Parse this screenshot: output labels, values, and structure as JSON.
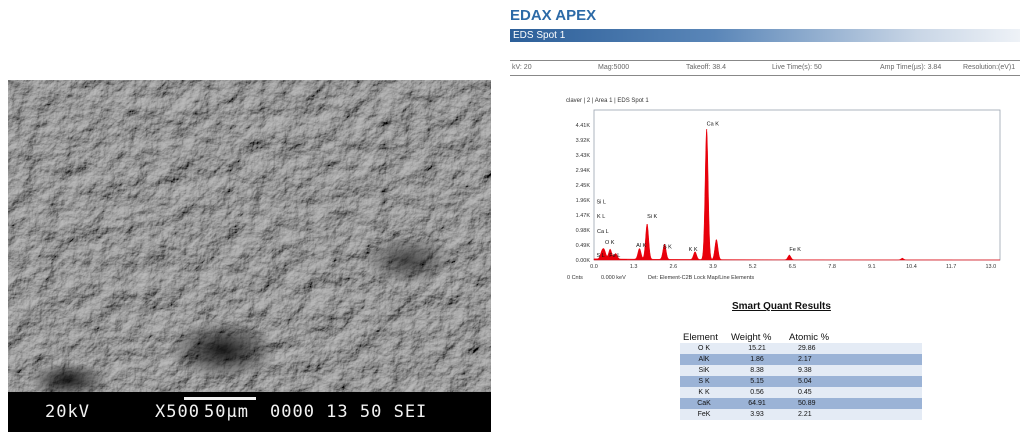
{
  "sem": {
    "kv": "20kV",
    "mag": "X500",
    "scale": "50µm",
    "info": "0000 13 50 SEI"
  },
  "report": {
    "title": "EDAX APEX",
    "spot": "EDS Spot 1",
    "params": {
      "kv": "kV: 20",
      "mag": "Mag:5000",
      "takeoff": "Takeoff: 38.4",
      "live": "Live Time(s): 50",
      "amp": "Amp Time(µs): 3.84",
      "resolution": "Resolution:(eV)1"
    },
    "spectrum_label": "claver | 2 | Area 1 | EDS Spot 1",
    "footer": {
      "cnts": "0 Cnts",
      "kev": "0.000 keV",
      "det": "Det: Element-C2B Lock Map/Line Elements"
    }
  },
  "chart_data": {
    "type": "line",
    "title": "",
    "xlabel": "",
    "ylabel": "",
    "xlim": [
      0,
      13.3
    ],
    "ylim": [
      0,
      4.9
    ],
    "x_ticks": [
      "0.0",
      "1.3",
      "2.6",
      "3.9",
      "5.2",
      "6.5",
      "7.8",
      "9.1",
      "10.4",
      "11.7",
      "13.0"
    ],
    "y_ticks": [
      "0.00K",
      "0.49K",
      "0.98K",
      "1.47K",
      "1.96K",
      "2.45K",
      "2.94K",
      "3.43K",
      "3.92K",
      "4.41K"
    ],
    "peaks": [
      {
        "x": 0.26,
        "y": 0.22
      },
      {
        "x": 0.34,
        "y": 0.25
      },
      {
        "x": 0.53,
        "y": 0.32
      },
      {
        "x": 0.71,
        "y": 0.18
      },
      {
        "x": 1.49,
        "y": 0.35
      },
      {
        "x": 1.74,
        "y": 1.15
      },
      {
        "x": 2.31,
        "y": 0.5
      },
      {
        "x": 3.31,
        "y": 0.25
      },
      {
        "x": 3.69,
        "y": 4.25
      },
      {
        "x": 4.01,
        "y": 0.65
      },
      {
        "x": 6.4,
        "y": 0.15
      },
      {
        "x": 10.1,
        "y": 0.05
      }
    ],
    "labels": [
      {
        "text": "Ca K",
        "x": 3.69,
        "y": 4.4
      },
      {
        "text": "Si L",
        "x": 0.08,
        "y": 1.85
      },
      {
        "text": "K L",
        "x": 0.1,
        "y": 1.37
      },
      {
        "text": "Si K",
        "x": 1.74,
        "y": 1.37
      },
      {
        "text": "Ca L",
        "x": 0.1,
        "y": 0.88
      },
      {
        "text": "O K",
        "x": 0.36,
        "y": 0.52
      },
      {
        "text": "Al K",
        "x": 1.38,
        "y": 0.42
      },
      {
        "text": "S K",
        "x": 2.26,
        "y": 0.38
      },
      {
        "text": "K K",
        "x": 3.1,
        "y": 0.3
      },
      {
        "text": "Fe K",
        "x": 6.4,
        "y": 0.3
      },
      {
        "text": "S L",
        "x": 0.08,
        "y": 0.1
      },
      {
        "text": "Fe L",
        "x": 0.5,
        "y": 0.1
      }
    ]
  },
  "smart_quant": {
    "title": "Smart Quant Results",
    "headers": [
      "Element",
      "Weight %",
      "Atomic %"
    ],
    "rows": [
      [
        "O K",
        "15.21",
        "29.86"
      ],
      [
        "AlK",
        "1.86",
        "2.17"
      ],
      [
        "SiK",
        "8.38",
        "9.38"
      ],
      [
        "S K",
        "5.15",
        "5.04"
      ],
      [
        "K K",
        "0.56",
        "0.45"
      ],
      [
        "CaK",
        "64.91",
        "50.89"
      ],
      [
        "FeK",
        "3.93",
        "2.21"
      ]
    ]
  },
  "colors": {
    "title_blue": "#2c6aa7",
    "spectrum_red": "#e8000b",
    "row_alt": "#9bb3d6"
  }
}
